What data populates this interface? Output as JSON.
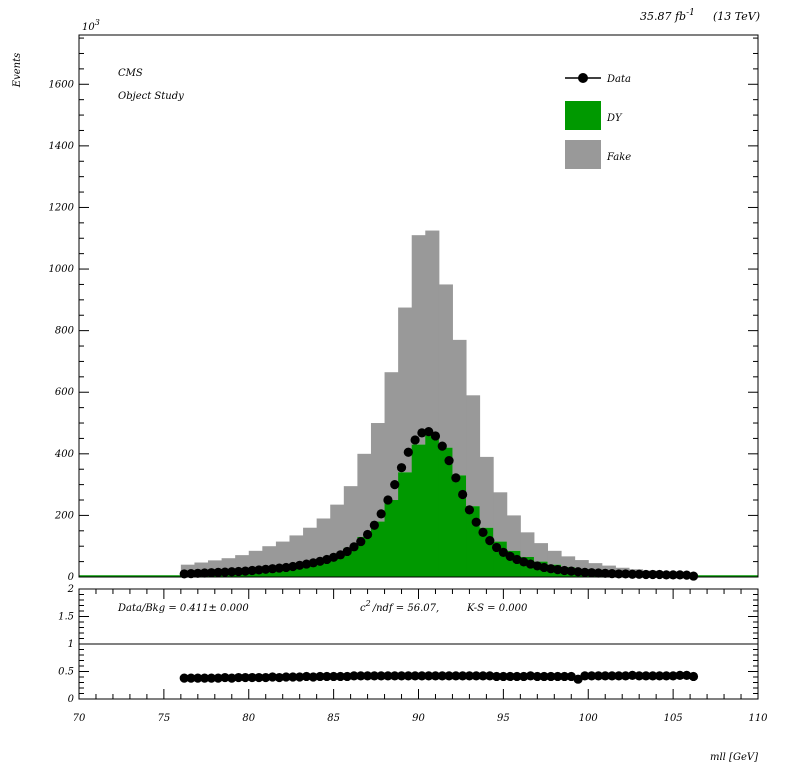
{
  "header": {
    "lumi_label": "35.87 fb",
    "lumi_exp": "-1",
    "energy_label": "(13 TeV)"
  },
  "annotations": {
    "experiment": "CMS",
    "study": "Object Study",
    "stats_ratio": "Data/Bkg = 0.411± 0.000",
    "stats_chi2_pre": "c",
    "stats_chi2_exp": "2",
    "stats_chi2_post": "/ndf = 56.07,",
    "stats_ks": "K-S = 0.000"
  },
  "colors": {
    "dy": "#009900",
    "fake": "#999999",
    "data": "#000000"
  },
  "chart_data": [
    {
      "type": "bar",
      "title": "",
      "xlabel": "mll [GeV]",
      "ylabel": "Events",
      "y_multiplier_base": "10",
      "y_multiplier_exp": "3",
      "xlim": [
        70,
        110
      ],
      "ylim": [
        0,
        1760
      ],
      "stacked": true,
      "bin_width": 0.8,
      "bin_centers": [
        76.4,
        77.2,
        78.0,
        78.8,
        79.6,
        80.4,
        81.2,
        82.0,
        82.8,
        83.6,
        84.4,
        85.2,
        86.0,
        86.8,
        87.6,
        88.4,
        89.2,
        90.0,
        90.8,
        91.6,
        92.4,
        93.2,
        94.0,
        94.8,
        95.6,
        96.4,
        97.2,
        98.0,
        98.8,
        99.6,
        100.4,
        101.2,
        102.0,
        102.8,
        103.6,
        104.4,
        105.2,
        106.0
      ],
      "series": [
        {
          "name": "DY",
          "values": [
            10,
            12,
            14,
            16,
            19,
            23,
            27,
            32,
            38,
            46,
            56,
            72,
            95,
            130,
            180,
            250,
            340,
            430,
            460,
            420,
            330,
            230,
            160,
            115,
            85,
            65,
            50,
            40,
            32,
            26,
            22,
            18,
            15,
            13,
            11,
            10,
            9,
            8
          ]
        },
        {
          "name": "Fake",
          "values": [
            30,
            35,
            40,
            45,
            52,
            62,
            73,
            83,
            97,
            114,
            134,
            163,
            200,
            270,
            320,
            415,
            535,
            680,
            665,
            530,
            440,
            360,
            230,
            160,
            115,
            80,
            60,
            45,
            35,
            29,
            23,
            19,
            15,
            12,
            10,
            8,
            6,
            4
          ]
        }
      ],
      "data_series": {
        "name": "Data",
        "x": [
          76.2,
          76.6,
          77.0,
          77.4,
          77.8,
          78.2,
          78.6,
          79.0,
          79.4,
          79.8,
          80.2,
          80.6,
          81.0,
          81.4,
          81.8,
          82.2,
          82.6,
          83.0,
          83.4,
          83.8,
          84.2,
          84.6,
          85.0,
          85.4,
          85.8,
          86.2,
          86.6,
          87.0,
          87.4,
          87.8,
          88.2,
          88.6,
          89.0,
          89.4,
          89.8,
          90.2,
          90.6,
          91.0,
          91.4,
          91.8,
          92.2,
          92.6,
          93.0,
          93.4,
          93.8,
          94.2,
          94.6,
          95.0,
          95.4,
          95.8,
          96.2,
          96.6,
          97.0,
          97.4,
          97.8,
          98.2,
          98.6,
          99.0,
          99.4,
          99.8,
          100.2,
          100.6,
          101.0,
          101.4,
          101.8,
          102.2,
          102.6,
          103.0,
          103.4,
          103.8,
          104.2,
          104.6,
          105.0,
          105.4,
          105.8,
          106.2
        ],
        "y": [
          10,
          11,
          12,
          13,
          14,
          15,
          16,
          17,
          18,
          19,
          21,
          23,
          25,
          27,
          29,
          31,
          34,
          38,
          42,
          46,
          51,
          57,
          64,
          72,
          83,
          98,
          115,
          138,
          168,
          205,
          250,
          300,
          355,
          405,
          445,
          468,
          472,
          458,
          425,
          378,
          322,
          268,
          218,
          178,
          145,
          118,
          96,
          80,
          67,
          57,
          49,
          42,
          36,
          31,
          27,
          24,
          21,
          19,
          17,
          15,
          14,
          13,
          12,
          11,
          10,
          10,
          9,
          9,
          8,
          8,
          8,
          7,
          7,
          7,
          6,
          3
        ]
      },
      "y_ticks": [
        0,
        200,
        400,
        600,
        800,
        1000,
        1200,
        1400,
        1600
      ],
      "legend": {
        "position": "top-right",
        "entries": [
          {
            "label": "Data",
            "style": "marker"
          },
          {
            "label": "DY",
            "style": "fill"
          },
          {
            "label": "Fake",
            "style": "fill"
          }
        ]
      }
    },
    {
      "type": "scatter",
      "title": "",
      "xlabel": "mll [GeV]",
      "ylabel": "",
      "xlim": [
        70,
        110
      ],
      "ylim": [
        0,
        2
      ],
      "reference_line": 1,
      "y_ticks": [
        0,
        0.5,
        1,
        1.5,
        2
      ],
      "y_tick_labels": [
        "0",
        "0.5",
        "1",
        "1.5",
        "2"
      ],
      "x_ticks": [
        70,
        75,
        80,
        85,
        90,
        95,
        100,
        105,
        110
      ],
      "x": [
        76.2,
        76.6,
        77.0,
        77.4,
        77.8,
        78.2,
        78.6,
        79.0,
        79.4,
        79.8,
        80.2,
        80.6,
        81.0,
        81.4,
        81.8,
        82.2,
        82.6,
        83.0,
        83.4,
        83.8,
        84.2,
        84.6,
        85.0,
        85.4,
        85.8,
        86.2,
        86.6,
        87.0,
        87.4,
        87.8,
        88.2,
        88.6,
        89.0,
        89.4,
        89.8,
        90.2,
        90.6,
        91.0,
        91.4,
        91.8,
        92.2,
        92.6,
        93.0,
        93.4,
        93.8,
        94.2,
        94.6,
        95.0,
        95.4,
        95.8,
        96.2,
        96.6,
        97.0,
        97.4,
        97.8,
        98.2,
        98.6,
        99.0,
        99.4,
        99.8,
        100.2,
        100.6,
        101.0,
        101.4,
        101.8,
        102.2,
        102.6,
        103.0,
        103.4,
        103.8,
        104.2,
        104.6,
        105.0,
        105.4,
        105.8,
        106.2
      ],
      "y": [
        0.38,
        0.38,
        0.38,
        0.38,
        0.38,
        0.38,
        0.39,
        0.38,
        0.39,
        0.39,
        0.39,
        0.39,
        0.39,
        0.4,
        0.39,
        0.4,
        0.4,
        0.4,
        0.41,
        0.4,
        0.41,
        0.41,
        0.41,
        0.41,
        0.41,
        0.42,
        0.42,
        0.42,
        0.42,
        0.42,
        0.42,
        0.42,
        0.42,
        0.42,
        0.42,
        0.42,
        0.42,
        0.42,
        0.42,
        0.42,
        0.42,
        0.42,
        0.42,
        0.42,
        0.42,
        0.42,
        0.41,
        0.41,
        0.41,
        0.41,
        0.41,
        0.42,
        0.41,
        0.41,
        0.41,
        0.41,
        0.41,
        0.41,
        0.36,
        0.42,
        0.42,
        0.42,
        0.42,
        0.42,
        0.42,
        0.42,
        0.43,
        0.42,
        0.42,
        0.42,
        0.42,
        0.42,
        0.42,
        0.43,
        0.43,
        0.41
      ]
    }
  ]
}
